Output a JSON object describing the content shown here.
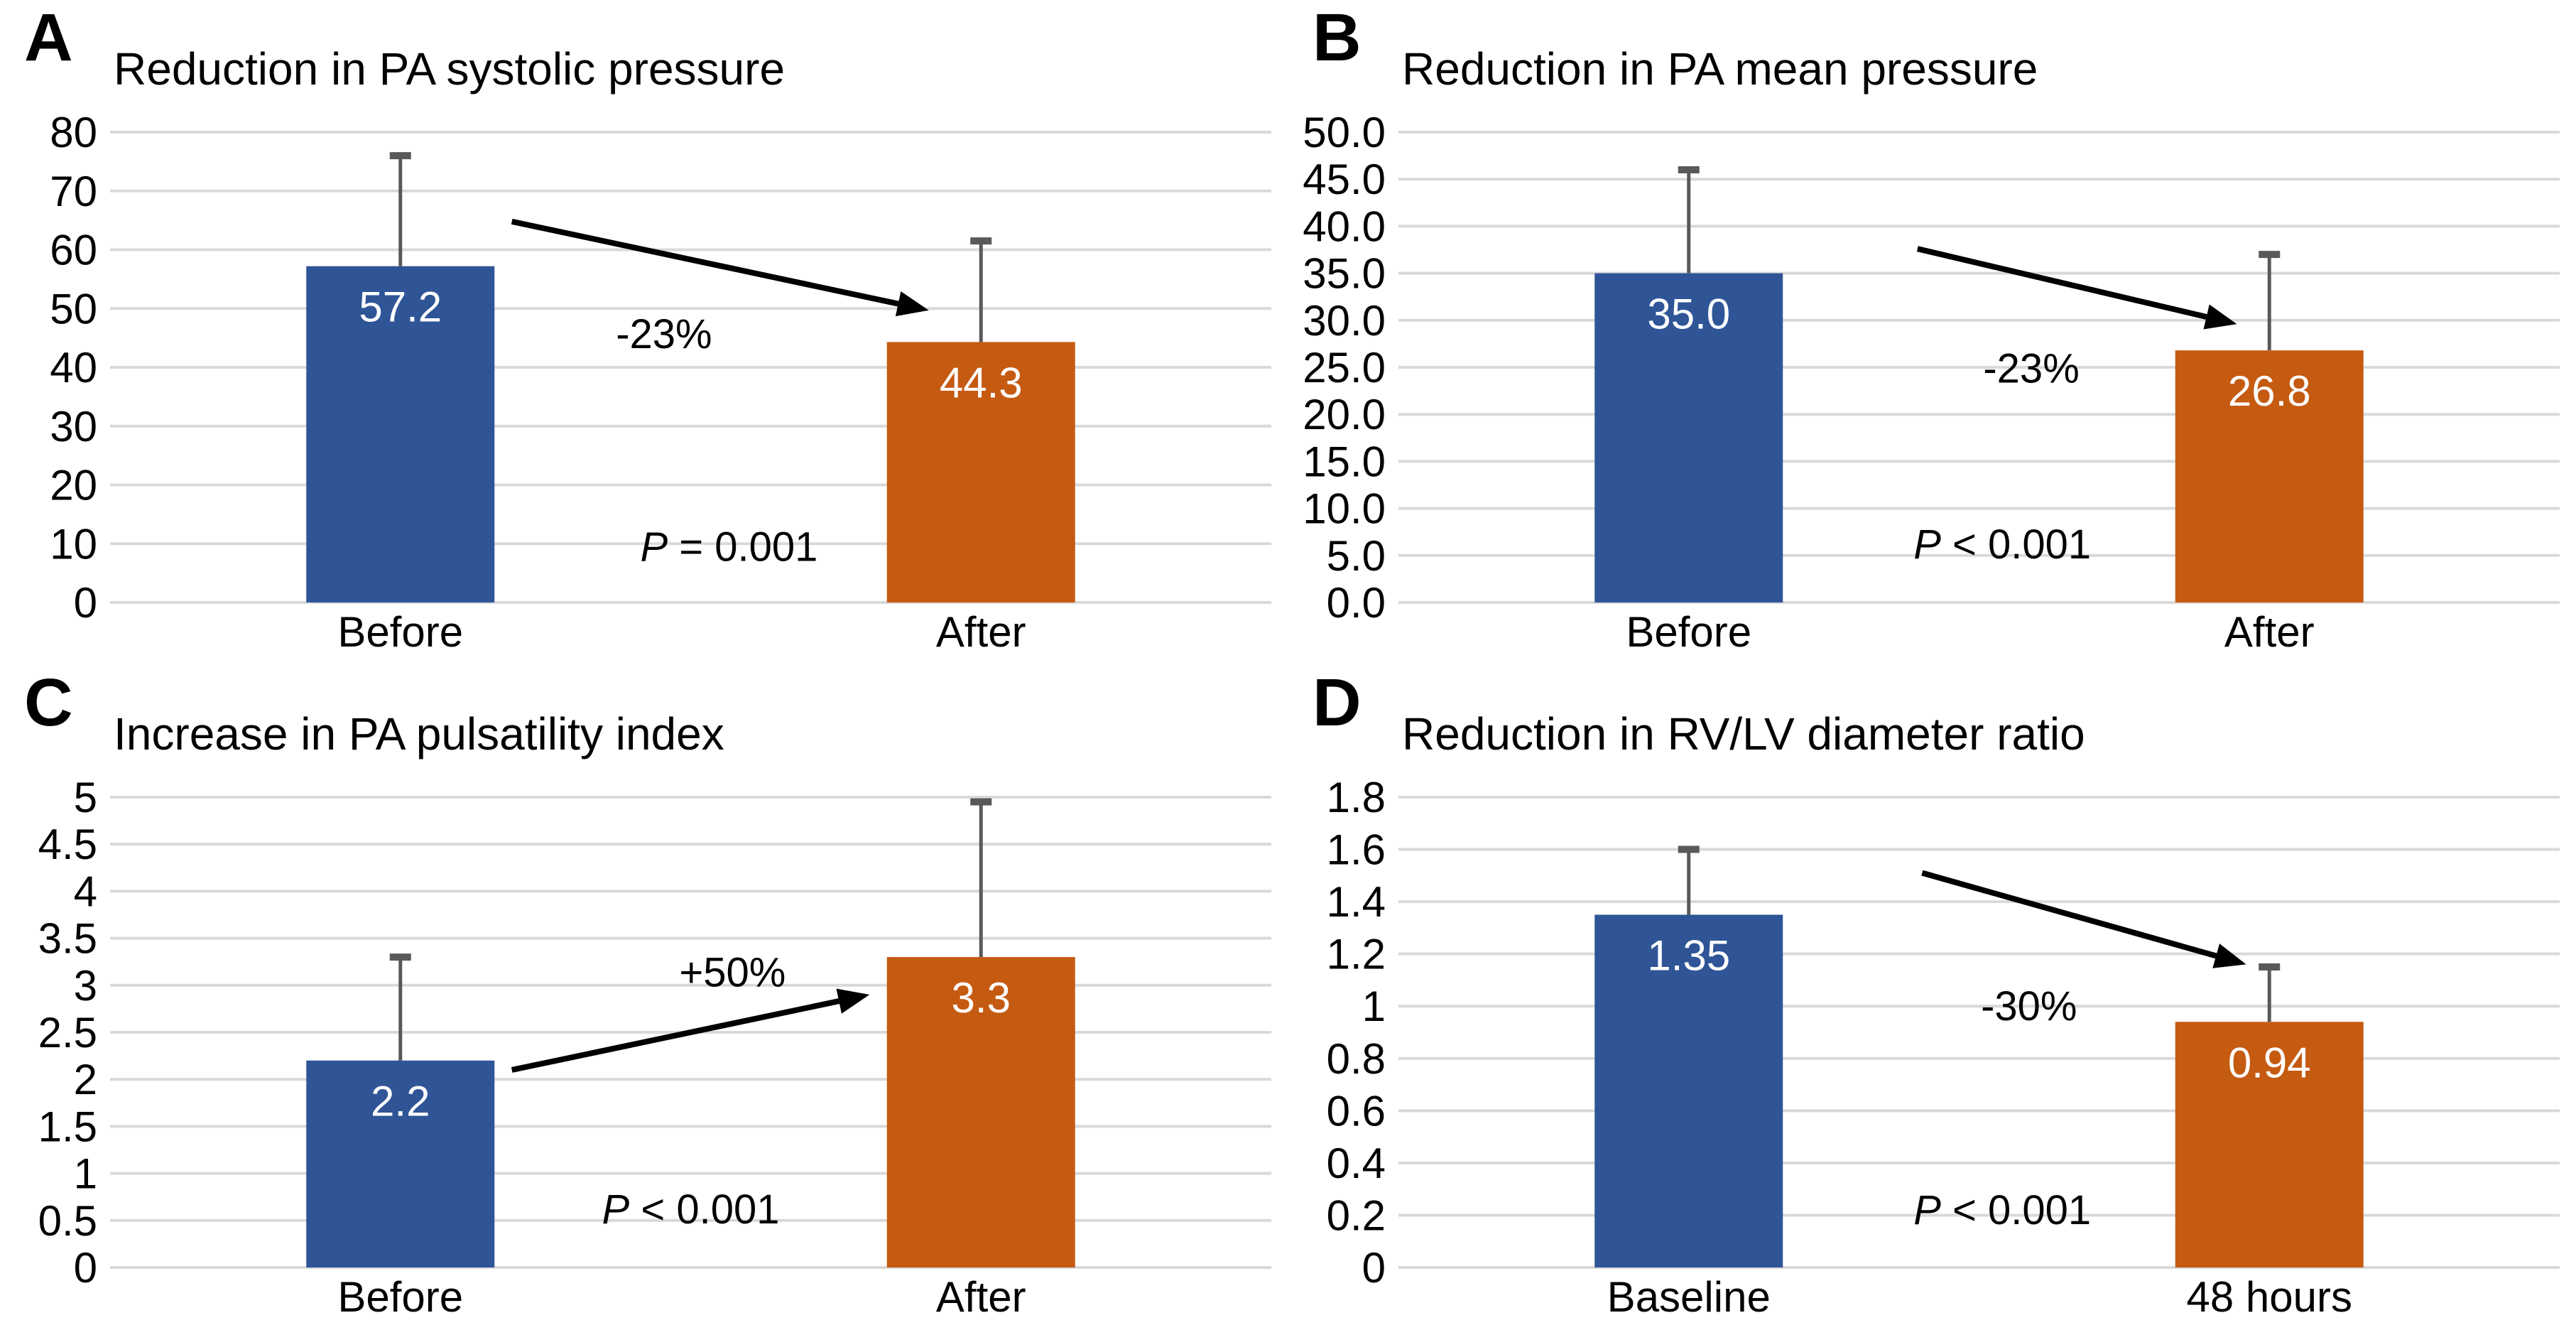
{
  "figure": {
    "background": "#ffffff"
  },
  "colors": {
    "bar_first": "#2F5597",
    "bar_second": "#C55A11",
    "error_bar": "#595959",
    "gridline": "#D9D9D9",
    "text": "#000000",
    "bar_value_text": "#FFFFFF",
    "arrow": "#000000"
  },
  "chart_data": [
    {
      "panel": "A",
      "type": "bar",
      "title": "Reduction in PA systolic pressure",
      "categories": [
        "Before",
        "After"
      ],
      "values": [
        57.2,
        44.3
      ],
      "value_labels": [
        "57.2",
        "44.3"
      ],
      "error_upper": [
        76,
        61.5
      ],
      "ylim": [
        0,
        80
      ],
      "ytick_labels_top_down": [
        "80",
        "70",
        "60",
        "50",
        "40",
        "30",
        "20",
        "10",
        "0"
      ],
      "grid": true,
      "legend_position": "none",
      "change_label": "-23%",
      "p_label": "P = 0.001",
      "arrow": {
        "x1": 0.346,
        "y1": 64.8,
        "x2": 0.705,
        "y2": 49.7
      },
      "change_pos": {
        "x": 0.477,
        "y": 45.7
      },
      "p_pos": {
        "x": 0.533,
        "y": 9.5
      }
    },
    {
      "panel": "B",
      "type": "bar",
      "title": "Reduction in PA mean pressure",
      "categories": [
        "Before",
        "After"
      ],
      "values": [
        35.0,
        26.8
      ],
      "value_labels": [
        "35.0",
        "26.8"
      ],
      "error_upper": [
        46,
        37
      ],
      "ylim": [
        0,
        50
      ],
      "ytick_labels_top_down": [
        "50.0",
        "45.0",
        "40.0",
        "35.0",
        "30.0",
        "25.0",
        "20.0",
        "15.0",
        "10.0",
        "5.0",
        "0.0"
      ],
      "grid": true,
      "legend_position": "none",
      "change_label": "-23%",
      "p_label": "P < 0.001",
      "arrow": {
        "x1": 0.447,
        "y1": 37.6,
        "x2": 0.722,
        "y2": 29.6
      },
      "change_pos": {
        "x": 0.545,
        "y": 24.9
      },
      "p_pos": {
        "x": 0.52,
        "y": 6.2
      }
    },
    {
      "panel": "C",
      "type": "bar",
      "title": "Increase in PA pulsatility index",
      "categories": [
        "Before",
        "After"
      ],
      "values": [
        2.2,
        3.3
      ],
      "value_labels": [
        "2.2",
        "3.3"
      ],
      "error_upper": [
        3.3,
        4.95
      ],
      "ylim": [
        0,
        5
      ],
      "ytick_labels_top_down": [
        "5",
        "4.5",
        "4",
        "3.5",
        "3",
        "2.5",
        "2",
        "1.5",
        "1",
        "0.5",
        "0"
      ],
      "grid": true,
      "legend_position": "none",
      "change_label": "+50%",
      "p_label": "P < 0.001",
      "arrow": {
        "x1": 0.346,
        "y1": 2.1,
        "x2": 0.654,
        "y2": 2.9
      },
      "change_pos": {
        "x": 0.536,
        "y": 3.14
      },
      "p_pos": {
        "x": 0.5,
        "y": 0.62
      }
    },
    {
      "panel": "D",
      "type": "bar",
      "title": "Reduction in RV/LV diameter ratio",
      "categories": [
        "Baseline",
        "48 hours"
      ],
      "values": [
        1.35,
        0.94
      ],
      "value_labels": [
        "1.35",
        "0.94"
      ],
      "error_upper": [
        1.6,
        1.15
      ],
      "ylim": [
        0,
        1.8
      ],
      "ytick_labels_top_down": [
        "1.8",
        "1.6",
        "1.4",
        "1.2",
        "1",
        "0.8",
        "0.6",
        "0.4",
        "0.2",
        "0"
      ],
      "grid": true,
      "legend_position": "none",
      "change_label": "-30%",
      "p_label": "P < 0.001",
      "arrow": {
        "x1": 0.451,
        "y1": 1.51,
        "x2": 0.73,
        "y2": 1.16
      },
      "change_pos": {
        "x": 0.543,
        "y": 1.0
      },
      "p_pos": {
        "x": 0.52,
        "y": 0.22
      }
    }
  ]
}
